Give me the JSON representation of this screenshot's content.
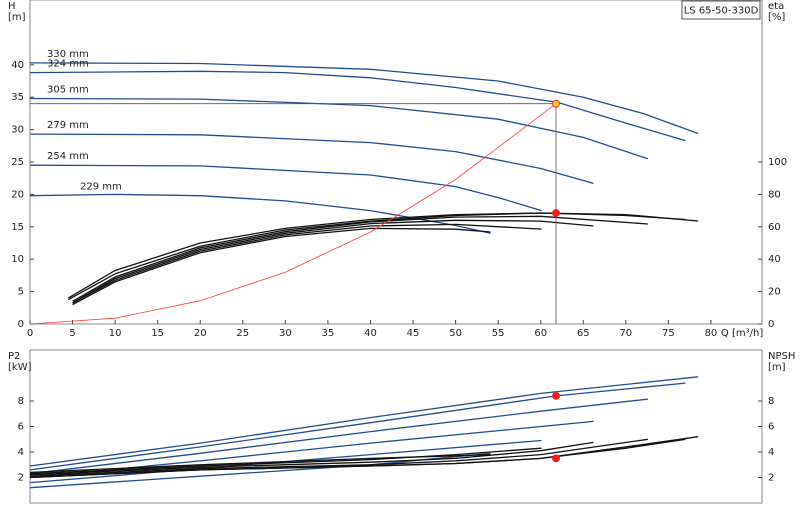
{
  "chart_data": [
    {
      "type": "line",
      "model": "LS 65-50-330D",
      "xlabel": "Q [m³/h]",
      "ylabel": [
        "H",
        "[m]"
      ],
      "y2label": [
        "eta",
        "[%]"
      ],
      "xlim": [
        0,
        86
      ],
      "xticks": [
        0,
        5,
        10,
        15,
        20,
        25,
        30,
        35,
        40,
        45,
        50,
        55,
        60,
        65,
        70,
        75,
        80
      ],
      "ylim": [
        0,
        50
      ],
      "yticks": [
        0,
        5,
        10,
        15,
        20,
        25,
        30,
        35,
        40
      ],
      "y2lim": [
        0,
        200
      ],
      "y2ticks": [
        0,
        20,
        40,
        60,
        80,
        100
      ],
      "series": [
        {
          "name": "330 mm",
          "color": "#1f4e8c",
          "x": [
            0,
            20,
            40,
            55,
            65,
            72,
            78.5
          ],
          "values": [
            40.3,
            40.2,
            39.3,
            37.5,
            35,
            32.5,
            29.4
          ]
        },
        {
          "name": "324 mm",
          "color": "#1f4e8c",
          "x": [
            0,
            20,
            30,
            40,
            50,
            62,
            70,
            77
          ],
          "values": [
            38.8,
            39,
            38.8,
            38,
            36.5,
            34.2,
            31,
            28.3
          ]
        },
        {
          "name": "305 mm",
          "color": "#1f4e8c",
          "x": [
            0,
            20,
            40,
            55,
            65,
            72.6
          ],
          "values": [
            34.8,
            34.7,
            33.7,
            31.6,
            28.8,
            25.5
          ]
        },
        {
          "name": "279 mm",
          "color": "#1f4e8c",
          "x": [
            0,
            20,
            40,
            50,
            60,
            66.2
          ],
          "values": [
            29.3,
            29.2,
            28,
            26.6,
            24,
            21.7
          ]
        },
        {
          "name": "254 mm",
          "color": "#1f4e8c",
          "x": [
            0,
            20,
            40,
            50,
            55,
            60.1
          ],
          "values": [
            24.5,
            24.4,
            23,
            21.2,
            19.5,
            17.5
          ]
        },
        {
          "name": "229 mm",
          "color": "#1f4e8c",
          "x": [
            0,
            10,
            20,
            30,
            40,
            50,
            54.1
          ],
          "values": [
            19.8,
            20,
            19.8,
            19,
            17.5,
            15.2,
            14
          ]
        },
        {
          "color": "#111111",
          "axis": "y2",
          "x": [
            4.5,
            10,
            20,
            30,
            40,
            50,
            60,
            70,
            78.5
          ],
          "values": [
            16,
            33,
            50,
            59,
            64.5,
            67.5,
            68.5,
            67.5,
            63.6
          ]
        },
        {
          "color": "#111111",
          "axis": "y2",
          "x": [
            4.5,
            10,
            20,
            30,
            40,
            50,
            60,
            70,
            77
          ],
          "values": [
            15,
            31,
            48,
            58,
            63.5,
            67,
            68.5,
            67,
            64.5
          ]
        },
        {
          "color": "#111111",
          "axis": "y2",
          "x": [
            5,
            10,
            20,
            30,
            40,
            50,
            60,
            72.6
          ],
          "values": [
            14,
            29,
            47,
            57,
            63,
            66,
            66.5,
            61.7
          ]
        },
        {
          "color": "#111111",
          "axis": "y2",
          "x": [
            5,
            10,
            20,
            30,
            40,
            50,
            60,
            66.2
          ],
          "values": [
            13,
            28,
            46,
            56,
            62,
            64,
            63.5,
            60.5
          ]
        },
        {
          "color": "#111111",
          "axis": "y2",
          "x": [
            5,
            10,
            20,
            30,
            40,
            50,
            60.1
          ],
          "values": [
            13,
            27,
            45,
            55,
            60.5,
            61.5,
            58.6
          ]
        },
        {
          "color": "#111111",
          "axis": "y2",
          "x": [
            5,
            10,
            20,
            30,
            40,
            50,
            54.1
          ],
          "values": [
            12,
            26,
            44,
            54,
            59,
            58.5,
            56.8
          ]
        },
        {
          "color": "#ff3b3b",
          "x": [
            0,
            10,
            20,
            30,
            40,
            50,
            61.8
          ],
          "values": [
            0,
            0.9,
            3.6,
            8,
            14.2,
            22.3,
            34
          ]
        }
      ],
      "markers": [
        {
          "x": 61.8,
          "y": 34,
          "color": "#ffc81e",
          "guides": true
        },
        {
          "x": 61.8,
          "y": 68.5,
          "axis": "y2",
          "color": "#ff1a1a"
        }
      ]
    },
    {
      "type": "line",
      "ylabel": [
        "P2",
        "[kW]"
      ],
      "y2label": [
        "NPSH",
        "[m]"
      ],
      "xlim": [
        0,
        86
      ],
      "ylim": [
        0,
        12
      ],
      "yticks": [
        2,
        4,
        6,
        8
      ],
      "y2lim": [
        0,
        12
      ],
      "y2ticks": [
        2,
        4,
        6,
        8
      ],
      "series": [
        {
          "color": "#1f4e8c",
          "x": [
            0,
            20,
            40,
            60,
            78.5
          ],
          "values": [
            2.9,
            4.7,
            6.7,
            8.6,
            9.9
          ]
        },
        {
          "color": "#1f4e8c",
          "x": [
            0,
            20,
            40,
            61.8,
            77
          ],
          "values": [
            2.6,
            4.4,
            6.3,
            8.4,
            9.4
          ]
        },
        {
          "color": "#1f4e8c",
          "x": [
            0,
            20,
            40,
            60,
            72.6
          ],
          "values": [
            2.3,
            3.9,
            5.6,
            7.2,
            8.15
          ]
        },
        {
          "color": "#1f4e8c",
          "x": [
            0,
            20,
            40,
            66.2
          ],
          "values": [
            2,
            3.3,
            4.7,
            6.4
          ]
        },
        {
          "color": "#1f4e8c",
          "x": [
            0,
            20,
            40,
            60.1
          ],
          "values": [
            1.6,
            2.7,
            3.8,
            4.9
          ]
        },
        {
          "color": "#1f4e8c",
          "x": [
            0,
            20,
            40,
            54.1
          ],
          "values": [
            1.2,
            2.1,
            3,
            3.9
          ]
        },
        {
          "color": "#111111",
          "axis": "y2",
          "x": [
            0,
            20,
            40,
            50,
            60,
            70,
            78.5
          ],
          "values": [
            2,
            2.6,
            2.9,
            3.1,
            3.5,
            4.4,
            5.2
          ]
        },
        {
          "color": "#111111",
          "axis": "y2",
          "x": [
            0,
            20,
            40,
            50,
            60,
            70,
            77
          ],
          "values": [
            2,
            2.6,
            2.9,
            3.1,
            3.5,
            4.3,
            5
          ]
        },
        {
          "color": "#111111",
          "axis": "y2",
          "x": [
            0,
            20,
            40,
            50,
            60,
            72.6
          ],
          "values": [
            2.1,
            2.7,
            3,
            3.3,
            3.8,
            5
          ]
        },
        {
          "color": "#111111",
          "axis": "y2",
          "x": [
            0,
            20,
            40,
            50,
            60,
            66.2
          ],
          "values": [
            2.2,
            2.8,
            3.2,
            3.5,
            4.1,
            4.75
          ]
        },
        {
          "color": "#111111",
          "axis": "y2",
          "x": [
            0,
            20,
            40,
            50,
            60.1
          ],
          "values": [
            2.3,
            2.9,
            3.4,
            3.8,
            4.3
          ]
        },
        {
          "color": "#111111",
          "axis": "y2",
          "x": [
            0,
            20,
            40,
            50,
            54.1
          ],
          "values": [
            2.4,
            3,
            3.5,
            3.7,
            3.8
          ]
        }
      ],
      "markers": [
        {
          "x": 61.8,
          "y": 8.4,
          "color": "#ff1a1a"
        },
        {
          "x": 61.8,
          "y": 3.5,
          "axis": "y2",
          "color": "#ff1a1a"
        }
      ]
    }
  ]
}
